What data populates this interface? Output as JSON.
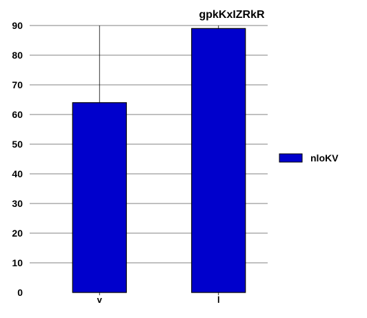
{
  "chart_data": {
    "type": "bar",
    "title": "gpkKxIZRkR",
    "xlabel": "",
    "ylabel": "",
    "categories": [
      "v",
      "l"
    ],
    "series": [
      {
        "name": "nloKV",
        "values": [
          64,
          89
        ],
        "color": "#0000cc"
      }
    ],
    "ylim": [
      0,
      90
    ],
    "yticks": [
      0,
      10,
      20,
      30,
      40,
      50,
      60,
      70,
      80,
      90
    ],
    "grid": true,
    "legend_position": "right",
    "colors": {
      "bar_fill": "#0000cc",
      "bar_stroke": "#000000",
      "grid": "#808080",
      "axis": "#000000"
    }
  }
}
